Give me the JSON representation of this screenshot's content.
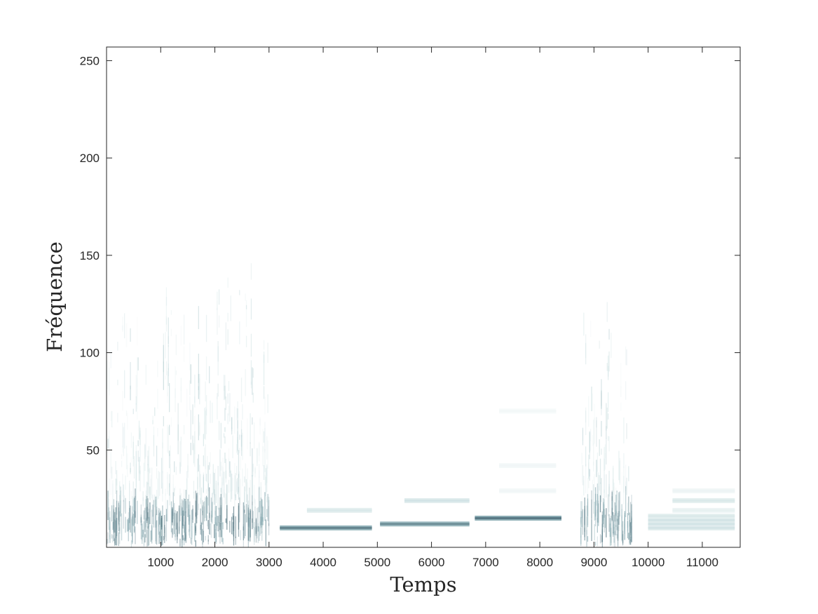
{
  "chart_data": {
    "type": "heatmap",
    "xlabel": "Temps",
    "ylabel": "Fréquence",
    "xlim": [
      0,
      11700
    ],
    "ylim": [
      0,
      257
    ],
    "xticks": [
      1000,
      2000,
      3000,
      4000,
      5000,
      6000,
      7000,
      8000,
      9000,
      10000,
      11000
    ],
    "yticks": [
      50,
      100,
      150,
      200,
      250
    ],
    "grid": false,
    "colormap": [
      "#ffffff",
      "#d7e7e8",
      "#8fb0b7",
      "#3f5f6c"
    ],
    "noise_segments": [
      {
        "x_start": 0,
        "x_end": 3000,
        "max_freq": 170
      },
      {
        "x_start": 8750,
        "x_end": 9700,
        "max_freq": 150
      }
    ],
    "tone_segments": [
      {
        "x_start": 3200,
        "x_end": 4900,
        "freq": 10,
        "intensity": 0.85
      },
      {
        "x_start": 3700,
        "x_end": 4900,
        "freq": 19,
        "intensity": 0.3
      },
      {
        "x_start": 5050,
        "x_end": 6700,
        "freq": 12,
        "intensity": 0.8
      },
      {
        "x_start": 5500,
        "x_end": 6700,
        "freq": 24,
        "intensity": 0.35
      },
      {
        "x_start": 6800,
        "x_end": 8400,
        "freq": 15,
        "intensity": 0.9
      },
      {
        "x_start": 7250,
        "x_end": 8300,
        "freq": 29,
        "intensity": 0.12
      },
      {
        "x_start": 7250,
        "x_end": 8300,
        "freq": 42,
        "intensity": 0.12
      },
      {
        "x_start": 7250,
        "x_end": 8300,
        "freq": 70,
        "intensity": 0.1
      },
      {
        "x_start": 10000,
        "x_end": 11600,
        "freq": 10,
        "intensity": 0.35
      },
      {
        "x_start": 10000,
        "x_end": 11600,
        "freq": 12,
        "intensity": 0.35
      },
      {
        "x_start": 10000,
        "x_end": 11600,
        "freq": 14,
        "intensity": 0.35
      },
      {
        "x_start": 10000,
        "x_end": 11600,
        "freq": 16,
        "intensity": 0.3
      },
      {
        "x_start": 10450,
        "x_end": 11600,
        "freq": 19,
        "intensity": 0.2
      },
      {
        "x_start": 10450,
        "x_end": 11600,
        "freq": 24,
        "intensity": 0.3
      },
      {
        "x_start": 10450,
        "x_end": 11600,
        "freq": 29,
        "intensity": 0.15
      }
    ]
  }
}
